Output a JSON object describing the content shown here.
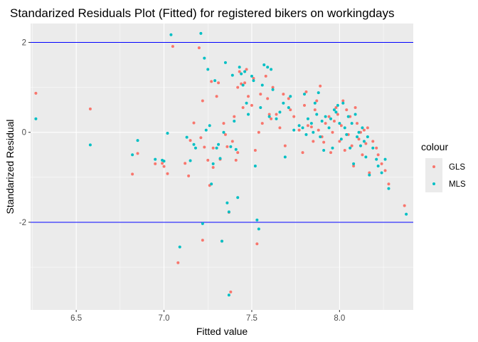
{
  "chart_data": {
    "type": "scatter",
    "title": "Standarized Residuals Plot (Fitted) for registered bikers on workingdays",
    "xlabel": "Fitted value",
    "ylabel": "Standarized Residual",
    "xlim": [
      6.24,
      8.42
    ],
    "ylim": [
      -3.95,
      2.42
    ],
    "xticks": [
      6.5,
      7.0,
      7.5,
      8.0
    ],
    "xtick_labels": [
      "6.5",
      "7.0",
      "7.5",
      "8.0"
    ],
    "yticks": [
      -2,
      0,
      2
    ],
    "ytick_labels": [
      "-2",
      "0",
      "2"
    ],
    "hlines": [
      2,
      -2
    ],
    "hline_color": "#0000ff",
    "panel_background": "#ebebeb",
    "grid": true,
    "legend": {
      "title": "colour",
      "position": "right"
    },
    "series": [
      {
        "name": "GLS",
        "color": "#f8766d",
        "points": [
          [
            6.27,
            0.87
          ],
          [
            6.58,
            0.52
          ],
          [
            6.82,
            -0.93
          ],
          [
            6.85,
            -0.47
          ],
          [
            6.95,
            -0.7
          ],
          [
            6.99,
            -0.69
          ],
          [
            7.0,
            -0.76
          ],
          [
            7.02,
            -0.92
          ],
          [
            7.05,
            1.91
          ],
          [
            7.08,
            -2.9
          ],
          [
            7.12,
            -0.69
          ],
          [
            7.14,
            -0.97
          ],
          [
            7.15,
            -0.18
          ],
          [
            7.17,
            0.21
          ],
          [
            7.2,
            1.88
          ],
          [
            7.21,
            -0.12
          ],
          [
            7.22,
            0.7
          ],
          [
            7.22,
            -2.4
          ],
          [
            7.23,
            -0.33
          ],
          [
            7.25,
            -0.62
          ],
          [
            7.26,
            -1.18
          ],
          [
            7.27,
            1.13
          ],
          [
            7.28,
            -0.35
          ],
          [
            7.28,
            -0.78
          ],
          [
            7.3,
            0.8
          ],
          [
            7.31,
            1.1
          ],
          [
            7.32,
            -0.6
          ],
          [
            7.33,
            -2.42
          ],
          [
            7.34,
            0.2
          ],
          [
            7.35,
            -0.05
          ],
          [
            7.36,
            -0.32
          ],
          [
            7.37,
            -1.78
          ],
          [
            7.38,
            -3.55
          ],
          [
            7.39,
            -0.2
          ],
          [
            7.4,
            0.35
          ],
          [
            7.41,
            -0.62
          ],
          [
            7.42,
            1.0
          ],
          [
            7.42,
            -0.45
          ],
          [
            7.43,
            1.35
          ],
          [
            7.44,
            1.08
          ],
          [
            7.45,
            0.55
          ],
          [
            7.46,
            1.1
          ],
          [
            7.47,
            1.4
          ],
          [
            7.48,
            0.8
          ],
          [
            7.5,
            0.6
          ],
          [
            7.51,
            1.2
          ],
          [
            7.52,
            -0.4
          ],
          [
            7.53,
            -2.48
          ],
          [
            7.54,
            0.0
          ],
          [
            7.55,
            0.85
          ],
          [
            7.56,
            0.2
          ],
          [
            7.58,
            1.25
          ],
          [
            7.59,
            0.75
          ],
          [
            7.6,
            0.4
          ],
          [
            7.61,
            0.3
          ],
          [
            7.62,
            1.0
          ],
          [
            7.64,
            0.4
          ],
          [
            7.66,
            0.1
          ],
          [
            7.68,
            0.85
          ],
          [
            7.69,
            -0.3
          ],
          [
            7.71,
            0.75
          ],
          [
            7.72,
            0.5
          ],
          [
            7.74,
            0.35
          ],
          [
            7.77,
            0.05
          ],
          [
            7.79,
            -0.45
          ],
          [
            7.8,
            0.6
          ],
          [
            7.81,
            0.9
          ],
          [
            7.82,
            0.15
          ],
          [
            7.84,
            0.12
          ],
          [
            7.85,
            -0.2
          ],
          [
            7.86,
            0.5
          ],
          [
            7.87,
            0.7
          ],
          [
            7.88,
            0.05
          ],
          [
            7.89,
            1.03
          ],
          [
            7.9,
            -0.1
          ],
          [
            7.91,
            -0.22
          ],
          [
            7.92,
            0.2
          ],
          [
            7.94,
            0.35
          ],
          [
            7.95,
            -0.45
          ],
          [
            7.96,
            0.0
          ],
          [
            7.97,
            0.25
          ],
          [
            7.98,
            0.55
          ],
          [
            7.99,
            0.4
          ],
          [
            8.0,
            -0.2
          ],
          [
            8.01,
            0.15
          ],
          [
            8.02,
            0.7
          ],
          [
            8.03,
            -0.4
          ],
          [
            8.04,
            0.5
          ],
          [
            8.05,
            -0.05
          ],
          [
            8.06,
            0.35
          ],
          [
            8.07,
            -0.3
          ],
          [
            8.08,
            -0.75
          ],
          [
            8.09,
            0.55
          ],
          [
            8.1,
            0.2
          ],
          [
            8.11,
            -0.15
          ],
          [
            8.12,
            0.0
          ],
          [
            8.13,
            -0.5
          ],
          [
            8.14,
            0.05
          ],
          [
            8.15,
            -0.25
          ],
          [
            8.16,
            0.1
          ],
          [
            8.17,
            -0.9
          ],
          [
            8.19,
            -0.2
          ],
          [
            8.21,
            -0.35
          ],
          [
            8.22,
            -0.5
          ],
          [
            8.24,
            -0.7
          ],
          [
            8.26,
            -0.85
          ],
          [
            8.28,
            -1.15
          ],
          [
            8.37,
            -1.63
          ]
        ]
      },
      {
        "name": "MLS",
        "color": "#00bfc4",
        "points": [
          [
            6.27,
            0.3
          ],
          [
            6.58,
            -0.28
          ],
          [
            6.82,
            -0.5
          ],
          [
            6.85,
            -0.18
          ],
          [
            6.95,
            -0.6
          ],
          [
            6.99,
            -0.62
          ],
          [
            7.0,
            -0.64
          ],
          [
            7.02,
            -0.02
          ],
          [
            7.04,
            2.17
          ],
          [
            7.09,
            -2.55
          ],
          [
            7.13,
            -0.11
          ],
          [
            7.15,
            -0.63
          ],
          [
            7.17,
            -0.27
          ],
          [
            7.18,
            -0.35
          ],
          [
            7.21,
            2.2
          ],
          [
            7.22,
            -2.03
          ],
          [
            7.23,
            1.65
          ],
          [
            7.24,
            0.05
          ],
          [
            7.25,
            1.4
          ],
          [
            7.26,
            0.15
          ],
          [
            7.27,
            -1.15
          ],
          [
            7.28,
            -0.7
          ],
          [
            7.29,
            1.15
          ],
          [
            7.3,
            -0.35
          ],
          [
            7.31,
            -0.27
          ],
          [
            7.32,
            -0.58
          ],
          [
            7.33,
            -2.42
          ],
          [
            7.34,
            0.0
          ],
          [
            7.35,
            1.55
          ],
          [
            7.36,
            -1.57
          ],
          [
            7.37,
            -1.77
          ],
          [
            7.37,
            -3.62
          ],
          [
            7.38,
            -0.32
          ],
          [
            7.39,
            1.27
          ],
          [
            7.4,
            0.25
          ],
          [
            7.41,
            -0.38
          ],
          [
            7.42,
            -1.45
          ],
          [
            7.43,
            1.45
          ],
          [
            7.44,
            1.3
          ],
          [
            7.45,
            1.05
          ],
          [
            7.46,
            1.35
          ],
          [
            7.47,
            0.65
          ],
          [
            7.48,
            0.4
          ],
          [
            7.5,
            1.25
          ],
          [
            7.51,
            1.15
          ],
          [
            7.52,
            -0.75
          ],
          [
            7.53,
            -1.95
          ],
          [
            7.54,
            -2.15
          ],
          [
            7.55,
            0.55
          ],
          [
            7.56,
            1.05
          ],
          [
            7.57,
            1.5
          ],
          [
            7.59,
            1.45
          ],
          [
            7.6,
            0.35
          ],
          [
            7.61,
            1.4
          ],
          [
            7.62,
            0.95
          ],
          [
            7.64,
            0.3
          ],
          [
            7.66,
            0.45
          ],
          [
            7.68,
            0.65
          ],
          [
            7.69,
            -0.55
          ],
          [
            7.71,
            0.55
          ],
          [
            7.72,
            0.8
          ],
          [
            7.74,
            0.05
          ],
          [
            7.77,
            0.15
          ],
          [
            7.79,
            0.1
          ],
          [
            7.8,
            0.85
          ],
          [
            7.81,
            -0.05
          ],
          [
            7.82,
            0.3
          ],
          [
            7.84,
            0.2
          ],
          [
            7.85,
            0.0
          ],
          [
            7.86,
            0.65
          ],
          [
            7.87,
            0.4
          ],
          [
            7.88,
            0.88
          ],
          [
            7.89,
            -0.1
          ],
          [
            7.9,
            0.25
          ],
          [
            7.91,
            -0.4
          ],
          [
            7.92,
            0.35
          ],
          [
            7.94,
            0.1
          ],
          [
            7.95,
            0.3
          ],
          [
            7.96,
            -0.35
          ],
          [
            7.97,
            0.5
          ],
          [
            7.98,
            0.45
          ],
          [
            7.99,
            0.6
          ],
          [
            8.0,
            0.2
          ],
          [
            8.01,
            -0.15
          ],
          [
            8.02,
            0.65
          ],
          [
            8.03,
            0.1
          ],
          [
            8.04,
            -0.05
          ],
          [
            8.05,
            0.35
          ],
          [
            8.06,
            -0.35
          ],
          [
            8.07,
            0.2
          ],
          [
            8.08,
            -0.7
          ],
          [
            8.09,
            0.4
          ],
          [
            8.1,
            -0.1
          ],
          [
            8.11,
            0.0
          ],
          [
            8.12,
            -0.3
          ],
          [
            8.13,
            0.1
          ],
          [
            8.14,
            -0.2
          ],
          [
            8.15,
            -0.55
          ],
          [
            8.16,
            -0.1
          ],
          [
            8.17,
            -0.95
          ],
          [
            8.19,
            -0.35
          ],
          [
            8.21,
            -0.6
          ],
          [
            8.22,
            -0.75
          ],
          [
            8.24,
            -0.9
          ],
          [
            8.26,
            -0.6
          ],
          [
            8.28,
            -1.25
          ],
          [
            8.38,
            -1.82
          ]
        ]
      }
    ]
  }
}
